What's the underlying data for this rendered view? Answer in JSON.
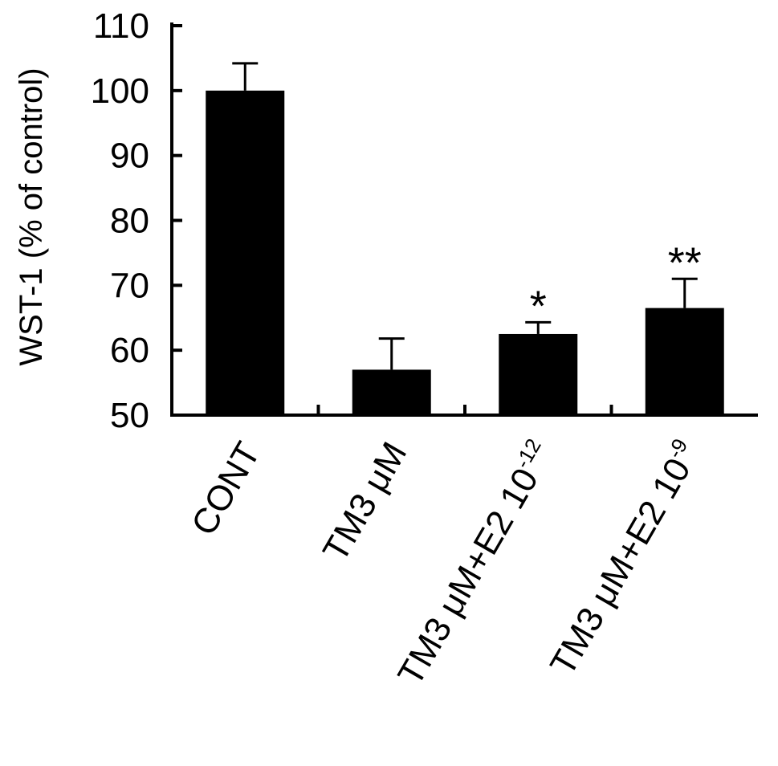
{
  "chart_data": {
    "type": "bar",
    "ylabel": "WST-1 (% of control)",
    "ylim": [
      50,
      110
    ],
    "yticks": [
      50,
      60,
      70,
      80,
      90,
      100,
      110
    ],
    "categories": [
      {
        "main": "CONT",
        "sup": ""
      },
      {
        "main": "TM3 μM",
        "sup": ""
      },
      {
        "main": "TM3 μM+E2 10",
        "sup": "-12"
      },
      {
        "main": "TM3 μM+E2 10",
        "sup": "-9"
      }
    ],
    "values": [
      100,
      57,
      62.5,
      66.5
    ],
    "errors": [
      4.2,
      4.8,
      1.8,
      4.5
    ],
    "significance": [
      "",
      "",
      "*",
      "**"
    ],
    "bar_color": "#000000",
    "grid": false,
    "legend": "none"
  }
}
